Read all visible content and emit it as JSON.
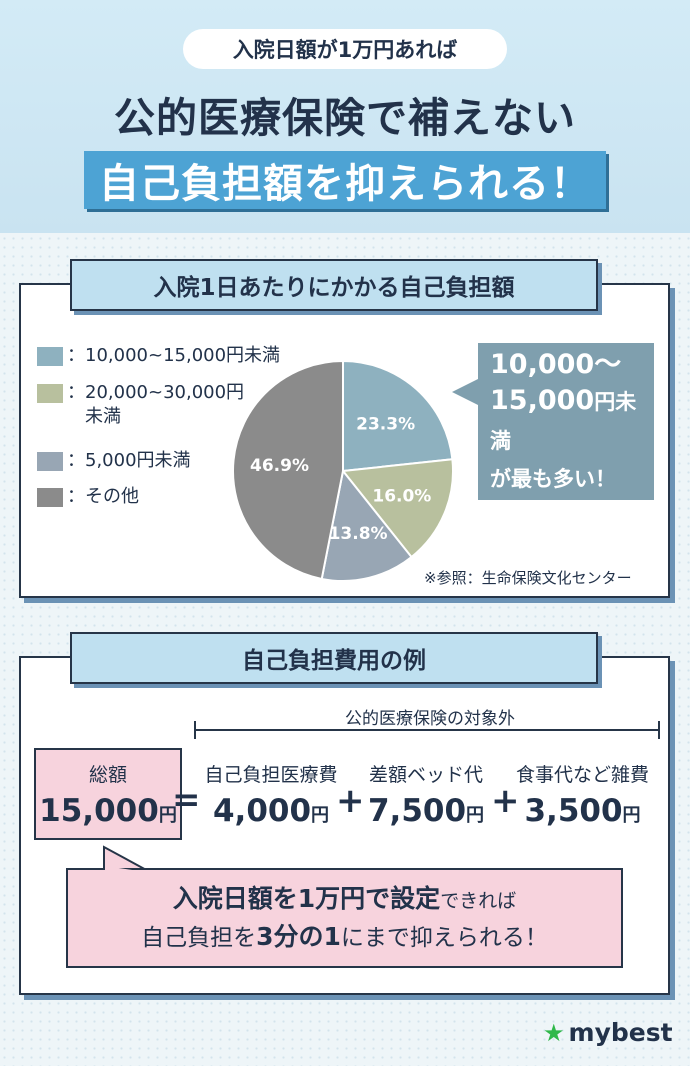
{
  "header": {
    "pill": "入院日額が1万円あれば",
    "title_line1": "公的医療保険で補えない",
    "title_line2": "自己負担額を抑えられる！"
  },
  "pie_section": {
    "tab": "入院1日あたりにかかる自己負担額",
    "callout": [
      "10,000〜",
      "15,000円未満",
      "が最も多い！"
    ],
    "source": "※参照：生命保険文化センター"
  },
  "chart_data": {
    "type": "pie",
    "title": "入院1日あたりにかかる自己負担額",
    "slices": [
      {
        "label": "10,000~15,000円未満",
        "legend_lines": [
          "10,000~15,000円未満"
        ],
        "value": 23.3,
        "value_label": "23.3%",
        "color": "#8eb1bf"
      },
      {
        "label": "20,000~30,000円未満",
        "legend_lines": [
          "20,000~30,000円",
          "未満"
        ],
        "value": 16.0,
        "value_label": "16.0%",
        "color": "#b8c09e"
      },
      {
        "label": "5,000円未満",
        "legend_lines": [
          "5,000円未満"
        ],
        "value": 13.8,
        "value_label": "13.8%",
        "color": "#98a6b4"
      },
      {
        "label": "その他",
        "legend_lines": [
          "その他"
        ],
        "value": 46.9,
        "value_label": "46.9%",
        "color": "#8b8b8b"
      }
    ],
    "legend_position": "left",
    "legend_prefix": "："
  },
  "example_section": {
    "tab": "自己負担費用の例",
    "bracket_label": "公的医療保険の対象外",
    "total": {
      "label": "総額",
      "amount": "15,000",
      "unit": "円"
    },
    "equals": "=",
    "plus": "+",
    "items": [
      {
        "label": "自己負担医療費",
        "amount": "4,000",
        "unit": "円",
        "color": "#cfe6f2"
      },
      {
        "label": "差額ベッド代",
        "amount": "7,500",
        "unit": "円",
        "color": "#d9e5c3"
      },
      {
        "label": "食事代など雑費",
        "amount": "3,500",
        "unit": "円",
        "color": "#ece5c7"
      }
    ],
    "bubble": {
      "line1_bold": "入院日額を1万円で設定",
      "line1_rest": "できれば",
      "line2_a": "自己負担を",
      "line2_bold": "3分の1",
      "line2_rest": "にまで抑えられる！"
    }
  },
  "logo": {
    "text": "mybest",
    "icon": "star-icon"
  }
}
